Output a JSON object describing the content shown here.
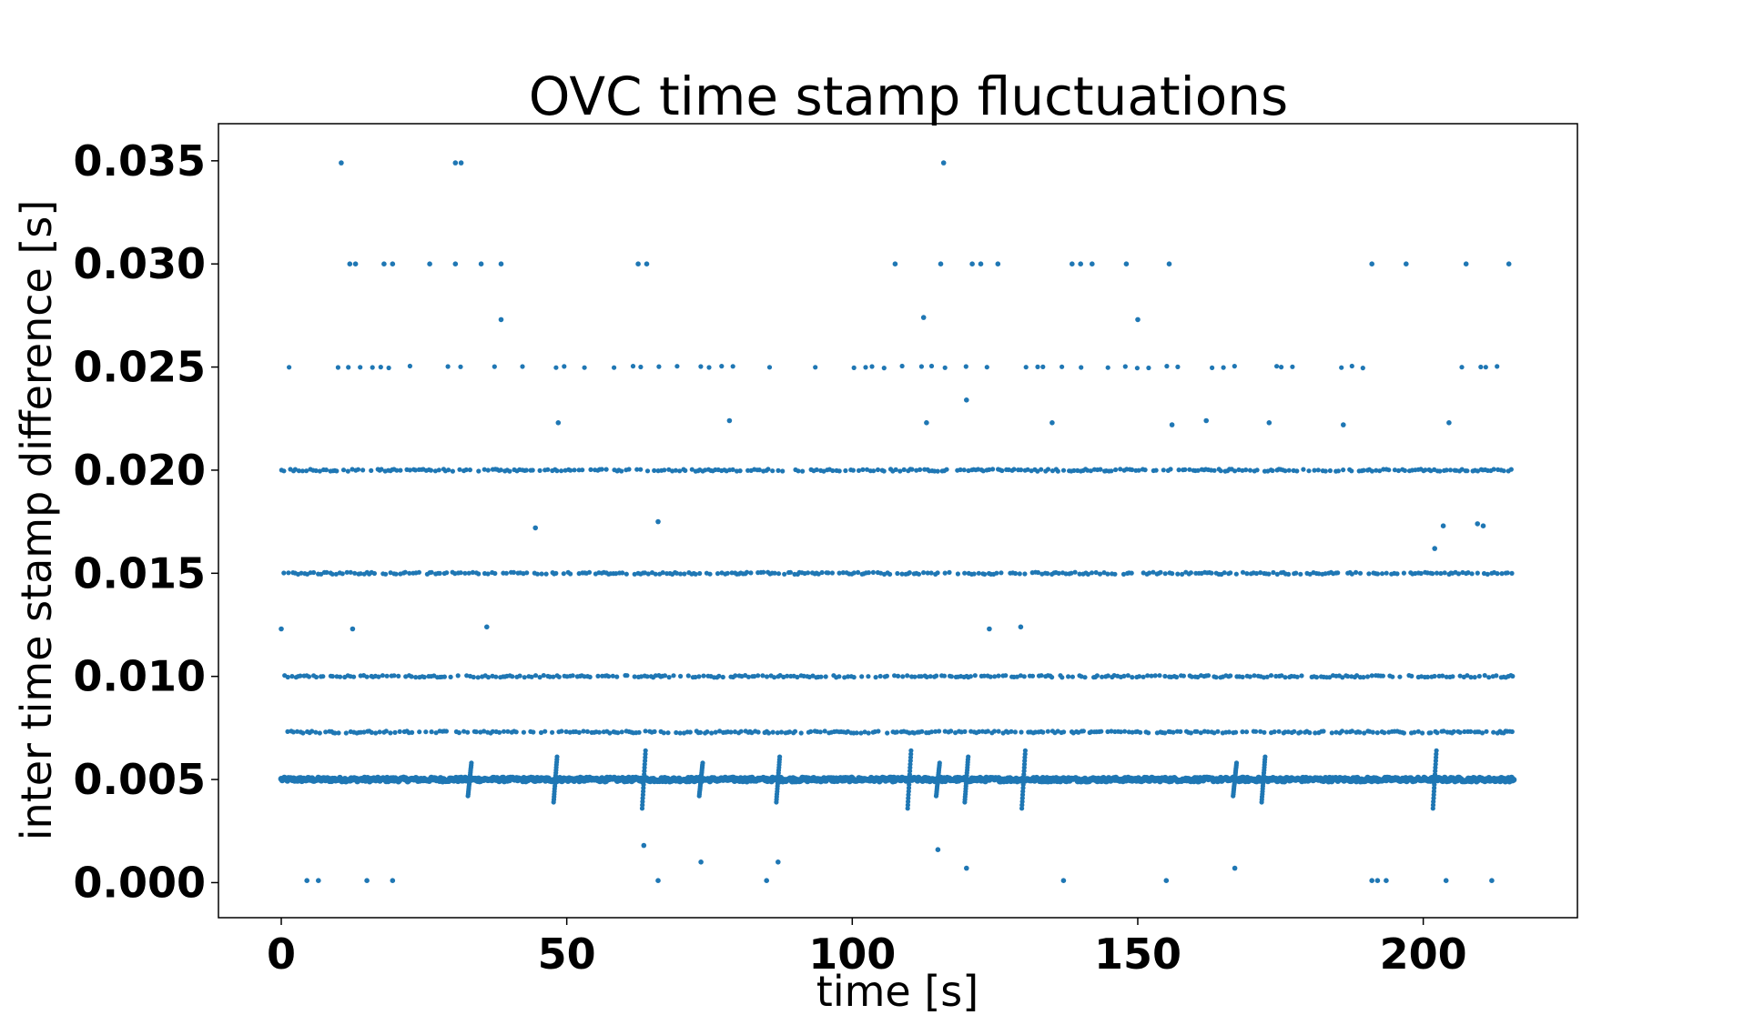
{
  "chart_data": {
    "type": "scatter",
    "title": "OVC time stamp fluctuations",
    "xlabel": "time [s]",
    "ylabel": "inter time stamp difference [s]",
    "xlim": [
      -11,
      227
    ],
    "ylim": [
      -0.0017,
      0.0368
    ],
    "grid": false,
    "legend": "none",
    "color": "#1f77b4",
    "xticks": [
      0,
      50,
      100,
      150,
      200
    ],
    "xtick_labels": [
      "0",
      "50",
      "100",
      "150",
      "200"
    ],
    "yticks": [
      0.0,
      0.005,
      0.01,
      0.015,
      0.02,
      0.025,
      0.03,
      0.035
    ],
    "ytick_labels": [
      "0.000",
      "0.005",
      "0.010",
      "0.015",
      "0.020",
      "0.025",
      "0.030",
      "0.035"
    ],
    "x_range": [
      0,
      216
    ],
    "bands": [
      {
        "y": 0.005,
        "density": "continuous"
      },
      {
        "y": 0.0073,
        "density": "dense"
      },
      {
        "y": 0.01,
        "density": "dense"
      },
      {
        "y": 0.015,
        "density": "dense"
      },
      {
        "y": 0.02,
        "density": "dense"
      },
      {
        "y": 0.025,
        "density": "sparse"
      }
    ],
    "jitter_x": [
      33,
      48,
      63.5,
      73.5,
      87,
      110,
      115,
      120,
      130,
      167,
      172,
      202
    ],
    "points": [
      [
        10.5,
        0.0349
      ],
      [
        30.5,
        0.0349
      ],
      [
        31.5,
        0.0349
      ],
      [
        116,
        0.0349
      ],
      [
        12,
        0.03
      ],
      [
        13,
        0.03
      ],
      [
        18,
        0.03
      ],
      [
        19.5,
        0.03
      ],
      [
        26,
        0.03
      ],
      [
        30.5,
        0.03
      ],
      [
        35,
        0.03
      ],
      [
        38.5,
        0.03
      ],
      [
        62.5,
        0.03
      ],
      [
        64,
        0.03
      ],
      [
        107.5,
        0.03
      ],
      [
        115.5,
        0.03
      ],
      [
        121,
        0.03
      ],
      [
        122.5,
        0.03
      ],
      [
        125.5,
        0.03
      ],
      [
        138.5,
        0.03
      ],
      [
        140,
        0.03
      ],
      [
        142,
        0.03
      ],
      [
        148,
        0.03
      ],
      [
        155.5,
        0.03
      ],
      [
        191,
        0.03
      ],
      [
        197,
        0.03
      ],
      [
        207.5,
        0.03
      ],
      [
        215,
        0.03
      ],
      [
        38.5,
        0.0273
      ],
      [
        112.5,
        0.0274
      ],
      [
        150,
        0.0273
      ],
      [
        48.5,
        0.0223
      ],
      [
        78.5,
        0.0224
      ],
      [
        113,
        0.0223
      ],
      [
        120,
        0.0234
      ],
      [
        135,
        0.0223
      ],
      [
        156,
        0.0222
      ],
      [
        162,
        0.0224
      ],
      [
        173,
        0.0223
      ],
      [
        186,
        0.0222
      ],
      [
        204.5,
        0.0223
      ],
      [
        44.5,
        0.0172
      ],
      [
        66,
        0.0175
      ],
      [
        203.5,
        0.0173
      ],
      [
        209.5,
        0.0174
      ],
      [
        210.5,
        0.0173
      ],
      [
        202,
        0.0162
      ],
      [
        0,
        0.0123
      ],
      [
        12.5,
        0.0123
      ],
      [
        36,
        0.0124
      ],
      [
        124,
        0.0123
      ],
      [
        129.5,
        0.0124
      ],
      [
        63.5,
        0.0018
      ],
      [
        73.5,
        0.001
      ],
      [
        87,
        0.001
      ],
      [
        115,
        0.0016
      ],
      [
        120,
        0.0007
      ],
      [
        167,
        0.0007
      ],
      [
        4.5,
        0.0001
      ],
      [
        6.5,
        0.0001
      ],
      [
        15,
        0.0001
      ],
      [
        19.5,
        0.0001
      ],
      [
        66,
        0.0001
      ],
      [
        85,
        0.0001
      ],
      [
        137,
        0.0001
      ],
      [
        155,
        0.0001
      ],
      [
        191,
        0.0001
      ],
      [
        192,
        0.0001
      ],
      [
        193.5,
        0.0001
      ],
      [
        204,
        0.0001
      ],
      [
        212,
        0.0001
      ]
    ]
  }
}
